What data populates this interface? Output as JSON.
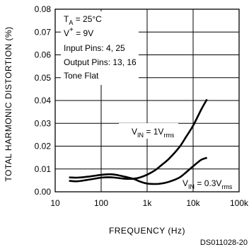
{
  "chart_data": {
    "type": "line",
    "title": "",
    "xlabel": "FREQUENCY (Hz)",
    "ylabel": "TOTAL HARMONIC DISTORTION (%)",
    "x_scale": "log",
    "xlim": [
      10,
      100000
    ],
    "ylim": [
      0,
      0.08
    ],
    "x_ticks": [
      10,
      100,
      1000,
      10000,
      100000
    ],
    "x_tick_labels": [
      "10",
      "100",
      "1k",
      "10k",
      "100k"
    ],
    "y_ticks": [
      0,
      0.01,
      0.02,
      0.03,
      0.04,
      0.05,
      0.06,
      0.07,
      0.08
    ],
    "y_tick_labels": [
      "0.00",
      "0.01",
      "0.02",
      "0.03",
      "0.04",
      "0.05",
      "0.06",
      "0.07",
      "0.08"
    ],
    "grid": true,
    "conditions": {
      "ta": "T",
      "ta_sub": "A",
      "ta_value": " = 25°C",
      "vplus": "V",
      "vplus_sup": "+",
      "vplus_value": " = 9V",
      "input_pins": "Input Pins: 4, 25",
      "output_pins": "Output Pins: 13, 16",
      "tone": "Tone Flat"
    },
    "series": [
      {
        "label_main": "V",
        "label_sub": "IN",
        "label_eq": " = 1V",
        "label_unit": "rms",
        "color": "#000000",
        "x": [
          20,
          30,
          50,
          100,
          150,
          200,
          300,
          500,
          700,
          1000,
          1500,
          2000,
          3000,
          5000,
          7000,
          10000,
          15000,
          20000
        ],
        "y": [
          0.0048,
          0.0046,
          0.0052,
          0.0062,
          0.0064,
          0.0062,
          0.0058,
          0.0057,
          0.0063,
          0.0075,
          0.0095,
          0.0115,
          0.0145,
          0.0195,
          0.024,
          0.029,
          0.036,
          0.0405
        ]
      },
      {
        "label_main": "V",
        "label_sub": "IN",
        "label_eq": " = 0.3V",
        "label_unit": "rms",
        "color": "#000000",
        "x": [
          20,
          30,
          50,
          100,
          150,
          200,
          300,
          500,
          700,
          1000,
          1500,
          2000,
          3000,
          5000,
          7000,
          10000,
          15000,
          20000
        ],
        "y": [
          0.0063,
          0.0062,
          0.0066,
          0.0074,
          0.0077,
          0.0075,
          0.0068,
          0.0057,
          0.0045,
          0.0036,
          0.0034,
          0.0036,
          0.0044,
          0.0062,
          0.0085,
          0.0112,
          0.014,
          0.0149
        ]
      }
    ]
  },
  "source_id": "DS011028-20"
}
